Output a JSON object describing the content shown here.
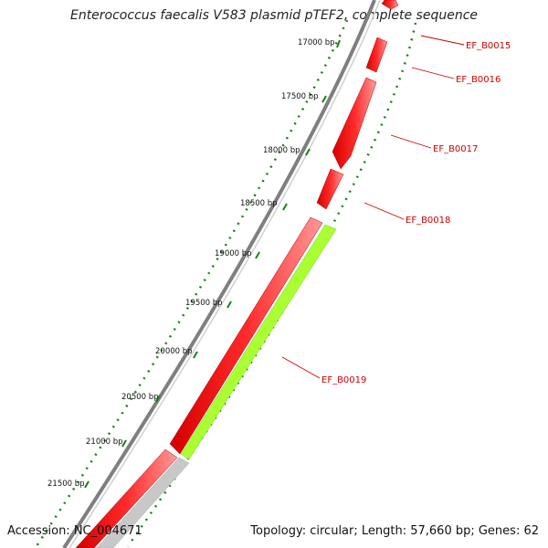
{
  "header": {
    "title": "Enterococcus faecalis V583 plasmid pTEF2, complete sequence"
  },
  "footer": {
    "accession": "Accession: NC_004671",
    "summary": "Topology: circular; Length: 57,660 bp; Genes: 62"
  },
  "map": {
    "backbone_color": "#7f7f7f",
    "cds_color": "#ff0000",
    "cds_shade_color": "#ff7a7a",
    "highlight_color": "#aaff33",
    "partial_color": "#c8c8c8",
    "tick_color": "#1a7f1a",
    "label_color": "#cc0000"
  },
  "ticks": [
    {
      "label": "17000 bp"
    },
    {
      "label": "17500 bp"
    },
    {
      "label": "18000 bp"
    },
    {
      "label": "18500 bp"
    },
    {
      "label": "19000 bp"
    },
    {
      "label": "19500 bp"
    },
    {
      "label": "20000 bp"
    },
    {
      "label": "20500 bp"
    },
    {
      "label": "21000 bp"
    },
    {
      "label": "21500 bp"
    }
  ],
  "genes": [
    {
      "label": "EF_B0015"
    },
    {
      "label": "EF_B0016"
    },
    {
      "label": "EF_B0017"
    },
    {
      "label": "EF_B0018"
    },
    {
      "label": "EF_B0019"
    }
  ]
}
